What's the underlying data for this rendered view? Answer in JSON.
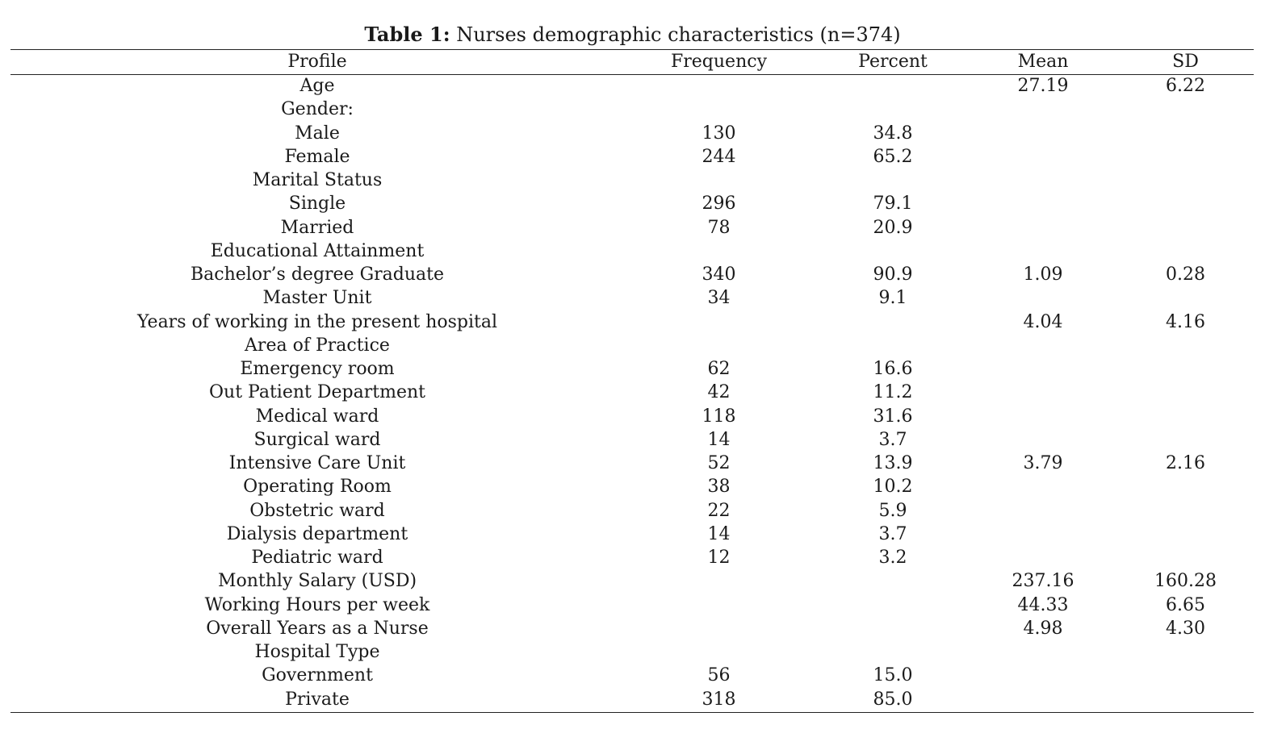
{
  "caption": {
    "label": "Table 1:",
    "text": "Nurses demographic characteristics (n=374)"
  },
  "headers": {
    "profile": "Profile",
    "frequency": "Frequency",
    "percent": "Percent",
    "mean": "Mean",
    "sd": "SD"
  },
  "rows": [
    {
      "profile": "Age",
      "frequency": "",
      "percent": "",
      "mean": "27.19",
      "sd": "6.22"
    },
    {
      "profile": "Gender:",
      "frequency": "",
      "percent": "",
      "mean": "",
      "sd": ""
    },
    {
      "profile": "Male",
      "frequency": "130",
      "percent": "34.8",
      "mean": "",
      "sd": ""
    },
    {
      "profile": "Female",
      "frequency": "244",
      "percent": "65.2",
      "mean": "",
      "sd": ""
    },
    {
      "profile": "Marital Status",
      "frequency": "",
      "percent": "",
      "mean": "",
      "sd": ""
    },
    {
      "profile": "Single",
      "frequency": "296",
      "percent": "79.1",
      "mean": "",
      "sd": ""
    },
    {
      "profile": "Married",
      "frequency": "78",
      "percent": "20.9",
      "mean": "",
      "sd": ""
    },
    {
      "profile": "Educational Attainment",
      "frequency": "",
      "percent": "",
      "mean": "",
      "sd": ""
    },
    {
      "profile": "Bachelor’s degree Graduate",
      "frequency": "340",
      "percent": "90.9",
      "mean": "1.09",
      "sd": "0.28"
    },
    {
      "profile": "Master Unit",
      "frequency": "34",
      "percent": "9.1",
      "mean": "",
      "sd": ""
    },
    {
      "profile": "Years of working in the present hospital",
      "frequency": "",
      "percent": "",
      "mean": "4.04",
      "sd": "4.16"
    },
    {
      "profile": "Area of Practice",
      "frequency": "",
      "percent": "",
      "mean": "",
      "sd": ""
    },
    {
      "profile": "Emergency room",
      "frequency": "62",
      "percent": "16.6",
      "mean": "",
      "sd": ""
    },
    {
      "profile": "Out Patient Department",
      "frequency": "42",
      "percent": "11.2",
      "mean": "",
      "sd": ""
    },
    {
      "profile": "Medical ward",
      "frequency": "118",
      "percent": "31.6",
      "mean": "",
      "sd": ""
    },
    {
      "profile": "Surgical ward",
      "frequency": "14",
      "percent": "3.7",
      "mean": "",
      "sd": ""
    },
    {
      "profile": "Intensive Care Unit",
      "frequency": "52",
      "percent": "13.9",
      "mean": "",
      "sd": ""
    },
    {
      "profile": "Operating Room",
      "frequency": "38",
      "percent": "10.2",
      "mean": "",
      "sd": ""
    },
    {
      "profile": "Obstetric ward",
      "frequency": "22",
      "percent": "5.9",
      "mean": "",
      "sd": ""
    },
    {
      "profile": "Dialysis department",
      "frequency": "14",
      "percent": "3.7",
      "mean": "",
      "sd": ""
    },
    {
      "profile": "Pediatric ward",
      "frequency": "12",
      "percent": "3.2",
      "mean": "",
      "sd": ""
    },
    {
      "profile": "Monthly Salary (USD)",
      "frequency": "",
      "percent": "",
      "mean": "237.16",
      "sd": "160.28"
    },
    {
      "profile": "Working Hours per week",
      "frequency": "",
      "percent": "",
      "mean": "44.33",
      "sd": "6.65"
    },
    {
      "profile": "Overall Years as a Nurse",
      "frequency": "",
      "percent": "",
      "mean": "4.98",
      "sd": "4.30"
    },
    {
      "profile": "Hospital Type",
      "frequency": "",
      "percent": "",
      "mean": "",
      "sd": ""
    },
    {
      "profile": "Government",
      "frequency": "56",
      "percent": "15.0",
      "mean": "",
      "sd": ""
    },
    {
      "profile": "Private",
      "frequency": "318",
      "percent": "85.0",
      "mean": "",
      "sd": ""
    }
  ],
  "area_of_practice_stats": {
    "mean": "3.79",
    "sd": "2.16"
  }
}
